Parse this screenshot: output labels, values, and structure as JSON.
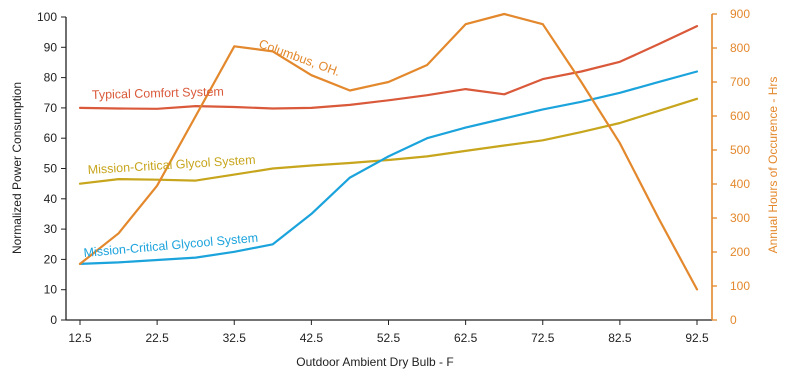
{
  "chart_data": {
    "type": "line",
    "title": "",
    "xlabel": "Outdoor Ambient Dry Bulb - F",
    "ylabel": "Normalized Power Consumption",
    "y2label": "Annual Hours of Occurence - Hrs",
    "xlim": [
      12.5,
      92.5
    ],
    "ylim": [
      0,
      100
    ],
    "y2lim": [
      0,
      900
    ],
    "x_ticks": [
      "12.5",
      "22.5",
      "32.5",
      "42.5",
      "52.5",
      "62.5",
      "72.5",
      "82.5",
      "92.5"
    ],
    "y_ticks": [
      "0",
      "10",
      "20",
      "30",
      "40",
      "50",
      "60",
      "70",
      "80",
      "90",
      "100"
    ],
    "y2_ticks": [
      "0",
      "100",
      "200",
      "300",
      "400",
      "500",
      "600",
      "700",
      "800",
      "900"
    ],
    "grid": false,
    "legend": "none",
    "series": [
      {
        "name": "Typical Comfort System",
        "axis": "left",
        "color": "#d9593a",
        "x": [
          12.5,
          17.5,
          22.5,
          27.5,
          32.5,
          37.5,
          42.5,
          47.5,
          52.5,
          57.5,
          62.5,
          67.5,
          72.5,
          77.5,
          82.5,
          87.5,
          92.5
        ],
        "values": [
          70,
          69.8,
          69.7,
          70.6,
          70.3,
          69.8,
          70,
          71,
          72.5,
          74.2,
          76.2,
          74.5,
          79.5,
          82,
          85.2,
          91,
          97
        ]
      },
      {
        "name": "Mission-Critical Glycol System",
        "axis": "left",
        "color": "#c7a51c",
        "x": [
          12.5,
          17.5,
          22.5,
          27.5,
          32.5,
          37.5,
          42.5,
          47.5,
          52.5,
          57.5,
          62.5,
          67.5,
          72.5,
          77.5,
          82.5,
          87.5,
          92.5
        ],
        "values": [
          45,
          46.5,
          46.3,
          46,
          48,
          50,
          51,
          51.8,
          52.8,
          54,
          55.8,
          57.6,
          59.3,
          62,
          65,
          69,
          73
        ]
      },
      {
        "name": "Mission-Critical Glycool System",
        "axis": "left",
        "color": "#1ba3dc",
        "x": [
          12.5,
          17.5,
          22.5,
          27.5,
          32.5,
          37.5,
          42.5,
          47.5,
          52.5,
          57.5,
          62.5,
          67.5,
          72.5,
          77.5,
          82.5,
          87.5,
          92.5
        ],
        "values": [
          18.5,
          19,
          19.8,
          20.6,
          22.5,
          25,
          35,
          47,
          54,
          60,
          63.5,
          66.5,
          69.5,
          72,
          75,
          78.5,
          82
        ]
      },
      {
        "name": "Columbus, OH.",
        "axis": "right",
        "color": "#e3882c",
        "x": [
          12.5,
          17.5,
          22.5,
          27.5,
          32.5,
          37.5,
          42.5,
          47.5,
          52.5,
          57.5,
          62.5,
          67.5,
          72.5,
          77.5,
          82.5,
          87.5,
          92.5
        ],
        "values": [
          165,
          255,
          395,
          600,
          805,
          790,
          720,
          675,
          700,
          750,
          870,
          900,
          870,
          700,
          520,
          300,
          90
        ]
      }
    ]
  }
}
